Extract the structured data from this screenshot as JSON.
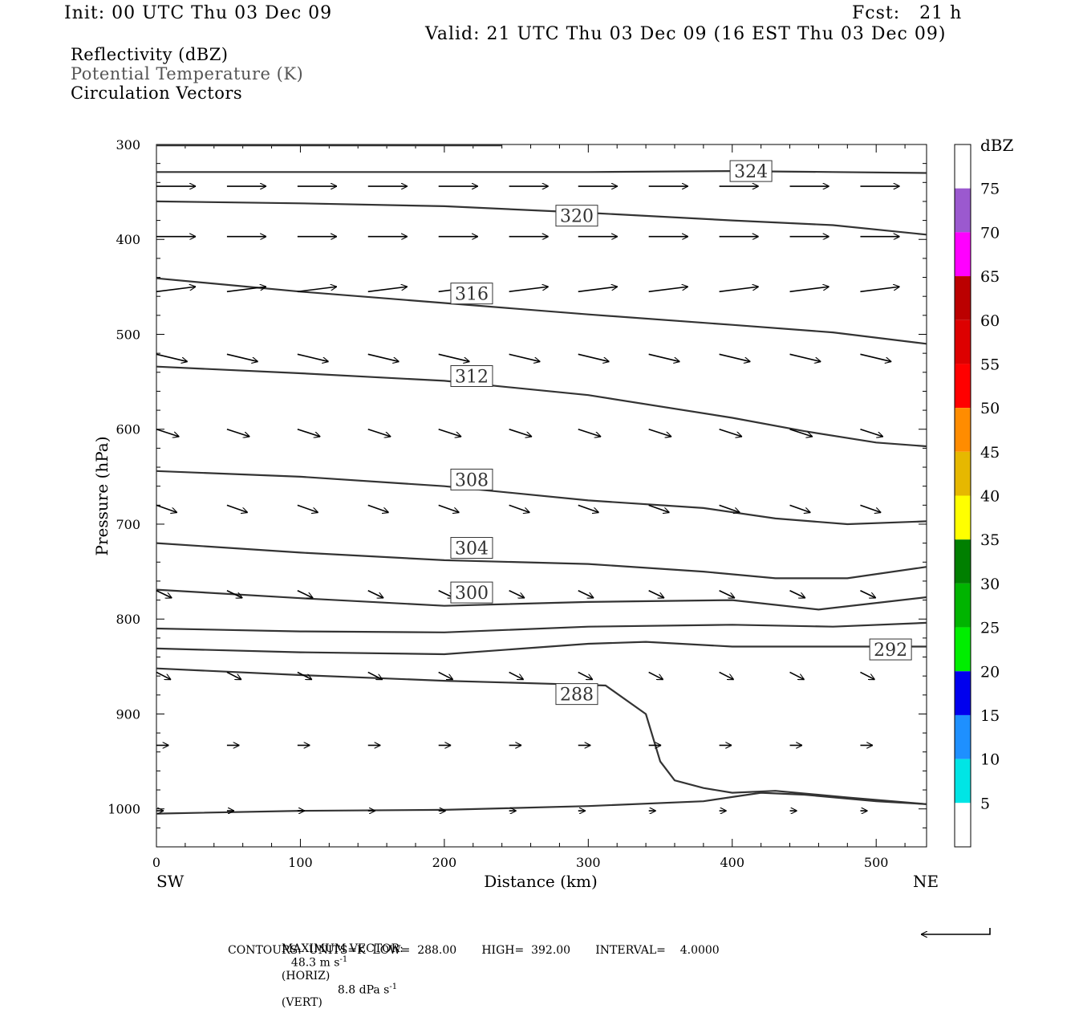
{
  "header": {
    "init": "Init: 00 UTC Thu 03 Dec 09",
    "fcst": "Fcst:   21 h",
    "valid": "Valid: 21 UTC Thu 03 Dec 09 (16 EST Thu 03 Dec 09)"
  },
  "legend_lines": {
    "reflectivity": "Reflectivity (dBZ)",
    "theta": "Potential Temperature (K)",
    "vectors": "Circulation Vectors"
  },
  "chart_data": {
    "type": "cross-section",
    "xlabel": "Distance (km)",
    "ylabel": "Pressure (hPa)",
    "x_end_labels": {
      "left": "SW",
      "right": "NE"
    },
    "xlim": [
      0,
      535
    ],
    "ylim": [
      300,
      1040
    ],
    "y_scale": "linear, inverted",
    "x_ticks": [
      0,
      100,
      200,
      300,
      400,
      500
    ],
    "y_ticks": [
      300,
      400,
      500,
      600,
      700,
      800,
      900,
      1000
    ],
    "contours": [
      {
        "label": "",
        "points": [
          [
            0,
            301
          ],
          [
            240,
            301
          ]
        ]
      },
      {
        "label": "324",
        "label_at": [
          413,
          328
        ],
        "points": [
          [
            0,
            329
          ],
          [
            100,
            329
          ],
          [
            200,
            329
          ],
          [
            300,
            329
          ],
          [
            400,
            328
          ],
          [
            470,
            329
          ],
          [
            535,
            330
          ]
        ]
      },
      {
        "label": "320",
        "label_at": [
          292,
          375
        ],
        "points": [
          [
            0,
            360
          ],
          [
            100,
            362
          ],
          [
            200,
            365
          ],
          [
            300,
            372
          ],
          [
            400,
            380
          ],
          [
            470,
            385
          ],
          [
            535,
            395
          ]
        ]
      },
      {
        "label": "316",
        "label_at": [
          219,
          457
        ],
        "points": [
          [
            0,
            441
          ],
          [
            100,
            455
          ],
          [
            200,
            467
          ],
          [
            300,
            479
          ],
          [
            400,
            490
          ],
          [
            470,
            498
          ],
          [
            535,
            510
          ]
        ]
      },
      {
        "label": "312",
        "label_at": [
          219,
          544
        ],
        "points": [
          [
            0,
            534
          ],
          [
            100,
            541
          ],
          [
            200,
            549
          ],
          [
            300,
            564
          ],
          [
            400,
            588
          ],
          [
            450,
            602
          ],
          [
            500,
            614
          ],
          [
            535,
            618
          ]
        ]
      },
      {
        "label": "308",
        "label_at": [
          219,
          653
        ],
        "points": [
          [
            0,
            644
          ],
          [
            100,
            650
          ],
          [
            200,
            660
          ],
          [
            300,
            675
          ],
          [
            380,
            683
          ],
          [
            430,
            694
          ],
          [
            480,
            700
          ],
          [
            535,
            697
          ]
        ]
      },
      {
        "label": "304",
        "label_at": [
          219,
          725
        ],
        "points": [
          [
            0,
            720
          ],
          [
            100,
            730
          ],
          [
            200,
            738
          ],
          [
            300,
            742
          ],
          [
            380,
            750
          ],
          [
            430,
            757
          ],
          [
            480,
            757
          ],
          [
            535,
            745
          ]
        ]
      },
      {
        "label": "300",
        "label_at": [
          219,
          772
        ],
        "points": [
          [
            0,
            769
          ],
          [
            100,
            778
          ],
          [
            200,
            786
          ],
          [
            300,
            782
          ],
          [
            400,
            780
          ],
          [
            460,
            790
          ],
          [
            535,
            777
          ]
        ]
      },
      {
        "label": "",
        "points": [
          [
            0,
            810
          ],
          [
            100,
            813
          ],
          [
            200,
            814
          ],
          [
            300,
            808
          ],
          [
            400,
            806
          ],
          [
            470,
            808
          ],
          [
            535,
            804
          ]
        ]
      },
      {
        "label": "292",
        "label_at": [
          510,
          832
        ],
        "points": [
          [
            0,
            831
          ],
          [
            100,
            835
          ],
          [
            200,
            837
          ],
          [
            300,
            826
          ],
          [
            340,
            824
          ],
          [
            400,
            829
          ],
          [
            470,
            829
          ],
          [
            535,
            829
          ]
        ]
      },
      {
        "label": "288",
        "label_at": [
          292,
          879
        ],
        "points": [
          [
            0,
            852
          ],
          [
            100,
            859
          ],
          [
            200,
            865
          ],
          [
            292,
            869
          ],
          [
            312,
            870
          ],
          [
            340,
            900
          ],
          [
            350,
            950
          ],
          [
            360,
            970
          ],
          [
            380,
            978
          ],
          [
            400,
            983
          ],
          [
            430,
            981
          ],
          [
            480,
            988
          ],
          [
            535,
            995
          ]
        ]
      },
      {
        "label": "",
        "points": [
          [
            0,
            1005
          ],
          [
            100,
            1002
          ],
          [
            200,
            1001
          ],
          [
            300,
            997
          ],
          [
            380,
            992
          ],
          [
            420,
            983
          ],
          [
            450,
            985
          ],
          [
            500,
            992
          ],
          [
            535,
            995
          ]
        ]
      }
    ],
    "vectors": {
      "rows": [
        {
          "p": 344,
          "dx": 38,
          "dp": 0
        },
        {
          "p": 397,
          "dx": 38,
          "dp": 0
        },
        {
          "p": 455,
          "dx": 38,
          "dp": -2
        },
        {
          "p": 521,
          "dx": 30,
          "dp": 3
        },
        {
          "p": 600,
          "dx": 22,
          "dp": 3
        },
        {
          "p": 680,
          "dx": 20,
          "dp": 3
        },
        {
          "p": 770,
          "dx": 15,
          "dp": 3
        },
        {
          "p": 856,
          "dx": 14,
          "dp": 3
        },
        {
          "p": 933,
          "dx": 12,
          "dp": 0
        },
        {
          "p": 1002,
          "dx": 7,
          "dp": 0
        }
      ],
      "x_start": [
        0,
        49,
        98,
        147,
        196,
        245,
        293,
        342,
        391,
        440,
        489
      ]
    },
    "colorbar": {
      "unit": "dBZ",
      "labels": [
        "75",
        "70",
        "65",
        "60",
        "55",
        "50",
        "45",
        "40",
        "35",
        "30",
        "25",
        "20",
        "15",
        "10",
        "5"
      ],
      "colors": [
        "#ffffff",
        "#9b59cf",
        "#ff00ff",
        "#bb0000",
        "#dd0000",
        "#ff0000",
        "#ff8c00",
        "#e6b800",
        "#ffff00",
        "#007f00",
        "#00b400",
        "#00ee00",
        "#0000ee",
        "#1e90ff",
        "#00e5e5",
        "#ffffff"
      ]
    }
  },
  "footer": {
    "max_vector_label": "MAXIMUM VECTOR:",
    "max_vector_horiz": "48.3 m s",
    "horiz_tag": "(HORIZ)",
    "max_vector_vert": "8.8 dPa s",
    "vert_tag": "(VERT)",
    "sup": "-1",
    "contours_line": "CONTOURS:  UNITS=K  LOW=  288.00       HIGH=  392.00       INTERVAL=    4.0000"
  }
}
